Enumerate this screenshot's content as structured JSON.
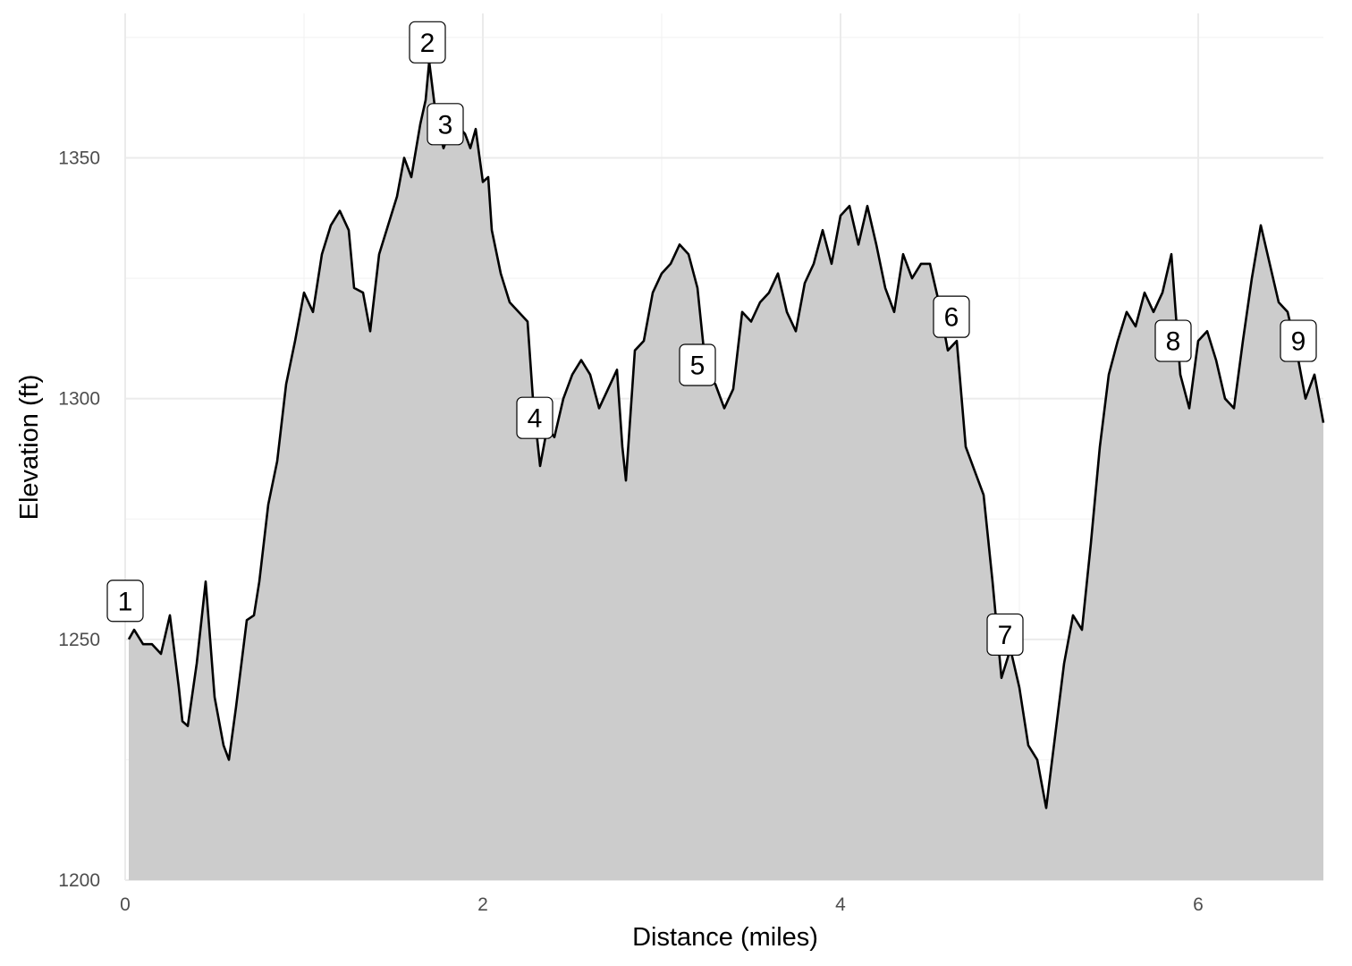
{
  "chart_data": {
    "type": "area",
    "xlabel": "Distance (miles)",
    "ylabel": "Elevation (ft)",
    "xlim": [
      0,
      6.7
    ],
    "ylim": [
      1200,
      1380
    ],
    "x_ticks": [
      0,
      2,
      4,
      6
    ],
    "y_ticks": [
      1200,
      1250,
      1300,
      1350
    ],
    "fill_color": "#cccccc",
    "line_color": "#000000",
    "grid": true,
    "profile": [
      [
        0.02,
        1250
      ],
      [
        0.05,
        1252
      ],
      [
        0.1,
        1249
      ],
      [
        0.15,
        1249
      ],
      [
        0.2,
        1247
      ],
      [
        0.25,
        1255
      ],
      [
        0.3,
        1240
      ],
      [
        0.32,
        1233
      ],
      [
        0.35,
        1232
      ],
      [
        0.4,
        1245
      ],
      [
        0.45,
        1262
      ],
      [
        0.5,
        1238
      ],
      [
        0.55,
        1228
      ],
      [
        0.58,
        1225
      ],
      [
        0.62,
        1236
      ],
      [
        0.68,
        1254
      ],
      [
        0.72,
        1255
      ],
      [
        0.75,
        1262
      ],
      [
        0.8,
        1278
      ],
      [
        0.85,
        1287
      ],
      [
        0.9,
        1303
      ],
      [
        0.95,
        1312
      ],
      [
        1.0,
        1322
      ],
      [
        1.05,
        1318
      ],
      [
        1.1,
        1330
      ],
      [
        1.15,
        1336
      ],
      [
        1.2,
        1339
      ],
      [
        1.25,
        1335
      ],
      [
        1.28,
        1323
      ],
      [
        1.33,
        1322
      ],
      [
        1.37,
        1314
      ],
      [
        1.42,
        1330
      ],
      [
        1.47,
        1336
      ],
      [
        1.52,
        1342
      ],
      [
        1.56,
        1350
      ],
      [
        1.6,
        1346
      ],
      [
        1.65,
        1357
      ],
      [
        1.68,
        1362
      ],
      [
        1.7,
        1370
      ],
      [
        1.74,
        1358
      ],
      [
        1.78,
        1352
      ],
      [
        1.82,
        1356
      ],
      [
        1.85,
        1357
      ],
      [
        1.9,
        1355
      ],
      [
        1.93,
        1352
      ],
      [
        1.96,
        1356
      ],
      [
        2.0,
        1345
      ],
      [
        2.03,
        1346
      ],
      [
        2.05,
        1335
      ],
      [
        2.1,
        1326
      ],
      [
        2.15,
        1320
      ],
      [
        2.2,
        1318
      ],
      [
        2.25,
        1316
      ],
      [
        2.28,
        1300
      ],
      [
        2.32,
        1286
      ],
      [
        2.36,
        1294
      ],
      [
        2.4,
        1292
      ],
      [
        2.45,
        1300
      ],
      [
        2.5,
        1305
      ],
      [
        2.55,
        1308
      ],
      [
        2.6,
        1305
      ],
      [
        2.65,
        1298
      ],
      [
        2.7,
        1302
      ],
      [
        2.75,
        1306
      ],
      [
        2.78,
        1290
      ],
      [
        2.8,
        1283
      ],
      [
        2.85,
        1310
      ],
      [
        2.9,
        1312
      ],
      [
        2.95,
        1322
      ],
      [
        3.0,
        1326
      ],
      [
        3.05,
        1328
      ],
      [
        3.1,
        1332
      ],
      [
        3.15,
        1330
      ],
      [
        3.2,
        1323
      ],
      [
        3.25,
        1305
      ],
      [
        3.3,
        1303
      ],
      [
        3.35,
        1298
      ],
      [
        3.4,
        1302
      ],
      [
        3.45,
        1318
      ],
      [
        3.5,
        1316
      ],
      [
        3.55,
        1320
      ],
      [
        3.6,
        1322
      ],
      [
        3.65,
        1326
      ],
      [
        3.7,
        1318
      ],
      [
        3.75,
        1314
      ],
      [
        3.8,
        1324
      ],
      [
        3.85,
        1328
      ],
      [
        3.9,
        1335
      ],
      [
        3.95,
        1328
      ],
      [
        4.0,
        1338
      ],
      [
        4.05,
        1340
      ],
      [
        4.1,
        1332
      ],
      [
        4.15,
        1340
      ],
      [
        4.2,
        1332
      ],
      [
        4.25,
        1323
      ],
      [
        4.3,
        1318
      ],
      [
        4.35,
        1330
      ],
      [
        4.4,
        1325
      ],
      [
        4.45,
        1328
      ],
      [
        4.5,
        1328
      ],
      [
        4.55,
        1320
      ],
      [
        4.6,
        1310
      ],
      [
        4.65,
        1312
      ],
      [
        4.7,
        1290
      ],
      [
        4.75,
        1285
      ],
      [
        4.8,
        1280
      ],
      [
        4.85,
        1262
      ],
      [
        4.9,
        1242
      ],
      [
        4.95,
        1248
      ],
      [
        5.0,
        1240
      ],
      [
        5.05,
        1228
      ],
      [
        5.1,
        1225
      ],
      [
        5.15,
        1215
      ],
      [
        5.2,
        1230
      ],
      [
        5.25,
        1245
      ],
      [
        5.3,
        1255
      ],
      [
        5.35,
        1252
      ],
      [
        5.4,
        1270
      ],
      [
        5.45,
        1290
      ],
      [
        5.5,
        1305
      ],
      [
        5.55,
        1312
      ],
      [
        5.6,
        1318
      ],
      [
        5.65,
        1315
      ],
      [
        5.7,
        1322
      ],
      [
        5.75,
        1318
      ],
      [
        5.8,
        1322
      ],
      [
        5.85,
        1330
      ],
      [
        5.9,
        1305
      ],
      [
        5.95,
        1298
      ],
      [
        6.0,
        1312
      ],
      [
        6.05,
        1314
      ],
      [
        6.1,
        1308
      ],
      [
        6.15,
        1300
      ],
      [
        6.2,
        1298
      ],
      [
        6.25,
        1312
      ],
      [
        6.3,
        1325
      ],
      [
        6.35,
        1336
      ],
      [
        6.4,
        1328
      ],
      [
        6.45,
        1320
      ],
      [
        6.5,
        1318
      ],
      [
        6.55,
        1310
      ],
      [
        6.6,
        1300
      ],
      [
        6.65,
        1305
      ],
      [
        6.7,
        1295
      ]
    ],
    "markers": [
      {
        "label": "1",
        "x": 0.0,
        "y": 1258
      },
      {
        "label": "2",
        "x": 1.69,
        "y": 1374
      },
      {
        "label": "3",
        "x": 1.79,
        "y": 1357
      },
      {
        "label": "4",
        "x": 2.29,
        "y": 1296
      },
      {
        "label": "5",
        "x": 3.2,
        "y": 1307
      },
      {
        "label": "6",
        "x": 4.62,
        "y": 1317
      },
      {
        "label": "7",
        "x": 4.92,
        "y": 1251
      },
      {
        "label": "8",
        "x": 5.86,
        "y": 1312
      },
      {
        "label": "9",
        "x": 6.56,
        "y": 1312
      }
    ]
  }
}
